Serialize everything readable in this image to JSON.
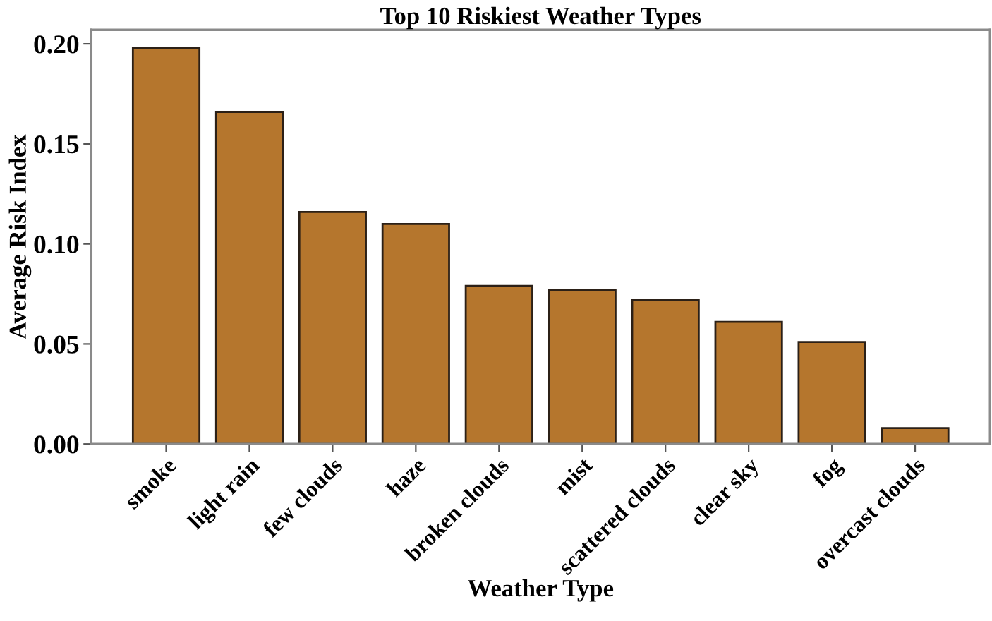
{
  "chart_data": {
    "type": "bar",
    "title": "Top 10 Riskiest Weather Types",
    "xlabel": "Weather Type",
    "ylabel": "Average Risk Index",
    "categories": [
      "smoke",
      "light rain",
      "few clouds",
      "haze",
      "broken clouds",
      "mist",
      "scattered clouds",
      "clear sky",
      "fog",
      "overcast clouds"
    ],
    "values": [
      0.198,
      0.166,
      0.116,
      0.11,
      0.079,
      0.077,
      0.072,
      0.061,
      0.051,
      0.008
    ],
    "color": "#b5762d",
    "ylim": [
      0,
      0.207
    ],
    "yticks": [
      {
        "value": 0,
        "label": "0.00"
      },
      {
        "value": 0.05,
        "label": "0.05"
      },
      {
        "value": 0.1,
        "label": "0.10"
      },
      {
        "value": 0.15,
        "label": "0.15"
      },
      {
        "value": 0.2,
        "label": "0.20"
      }
    ],
    "grid": false
  }
}
